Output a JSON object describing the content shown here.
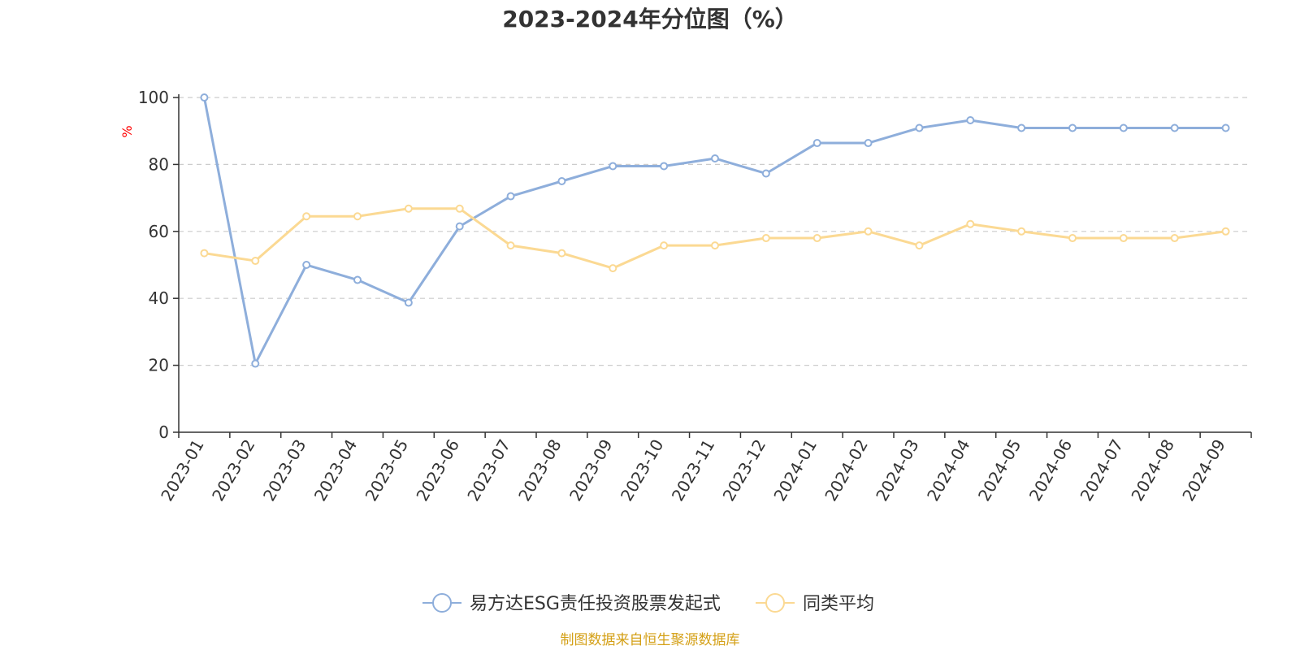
{
  "chart_data": {
    "type": "line",
    "title": "2023-2024年分位图（%）",
    "ylabel": "%",
    "ylim": [
      0,
      100
    ],
    "yticks": [
      0,
      20,
      40,
      60,
      80,
      100
    ],
    "grid": true,
    "legend_position": "bottom",
    "categories": [
      "2023-01",
      "2023-02",
      "2023-03",
      "2023-04",
      "2023-05",
      "2023-06",
      "2023-07",
      "2023-08",
      "2023-09",
      "2023-10",
      "2023-11",
      "2023-12",
      "2024-01",
      "2024-02",
      "2024-03",
      "2024-04",
      "2024-05",
      "2024-06",
      "2024-07",
      "2024-08",
      "2024-09"
    ],
    "series": [
      {
        "name": "易方达ESG责任投资股票发起式",
        "color": "#8eaedb",
        "values": [
          100,
          20.5,
          50,
          45.5,
          38.7,
          61.5,
          70.5,
          75,
          79.5,
          79.5,
          81.8,
          77.3,
          86.4,
          86.4,
          90.9,
          93.2,
          90.9,
          90.9,
          90.9,
          90.9,
          90.9
        ]
      },
      {
        "name": "同类平均",
        "color": "#fbd993",
        "values": [
          53.5,
          51.2,
          64.5,
          64.5,
          66.8,
          66.8,
          55.8,
          53.5,
          49,
          55.8,
          55.8,
          58,
          58,
          60,
          55.8,
          62.2,
          60,
          58,
          58,
          58,
          60
        ]
      }
    ]
  },
  "source_note": "制图数据来自恒生聚源数据库",
  "colors": {
    "axis": "#333333",
    "grid": "#cccccc",
    "ylabel": "#ff0000",
    "source": "#d4a017"
  }
}
